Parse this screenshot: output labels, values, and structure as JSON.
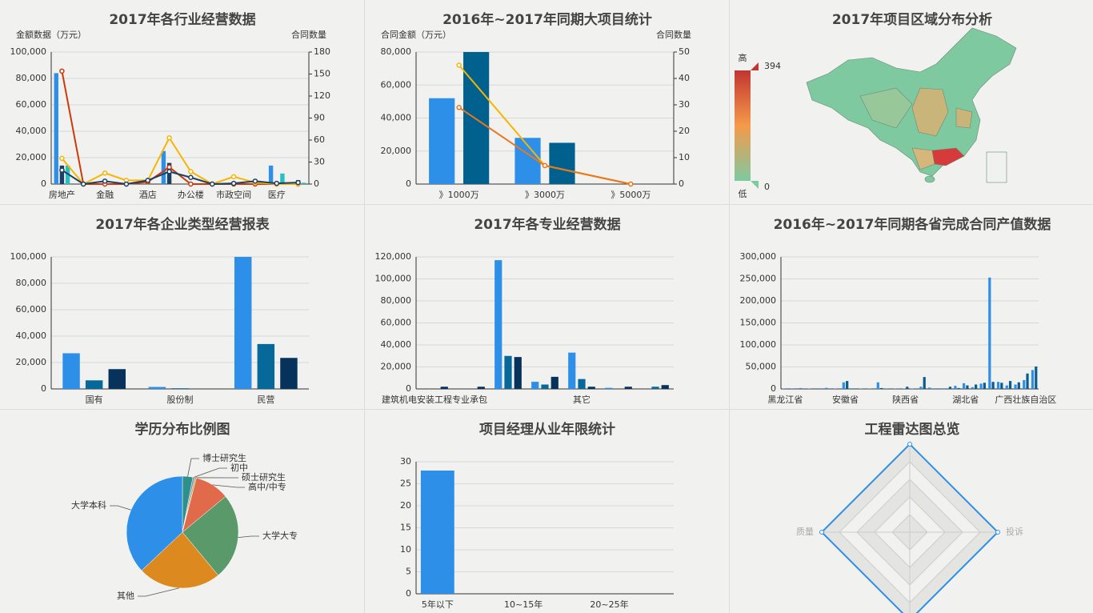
{
  "chart_data": [
    {
      "type": "bar",
      "title": "2017年各行业经营数据",
      "ylabel": "金额数据（万元）",
      "y2label": "合同数量",
      "categories": [
        "房地产",
        null,
        "金融",
        null,
        "酒店",
        null,
        "办公楼",
        null,
        "市政空间",
        null,
        "医疗",
        null
      ],
      "series": [
        {
          "color": "#2e8fe8",
          "values": [
            84000,
            0,
            0,
            0,
            0,
            25000,
            0,
            0,
            0,
            0,
            14000,
            0
          ]
        },
        {
          "color": "#1b3f66",
          "values": [
            14000,
            0,
            0,
            0,
            0,
            16000,
            0,
            0,
            0,
            0,
            0,
            3000
          ]
        },
        {
          "color": "#26c0c0",
          "values": [
            14000,
            0,
            0,
            0,
            0,
            0,
            0,
            0,
            0,
            0,
            8000,
            1000
          ]
        },
        {
          "type": "line",
          "axis": "y2",
          "color": "#cc3a0a",
          "values": [
            154,
            0,
            0,
            0,
            3,
            23,
            0,
            0,
            0,
            0,
            0,
            0
          ]
        },
        {
          "type": "line",
          "axis": "y2",
          "color": "#f7b500",
          "values": [
            35,
            0,
            15,
            5,
            5,
            63,
            17,
            0,
            10,
            2,
            0,
            0
          ]
        },
        {
          "type": "line",
          "axis": "y2",
          "color": "#1b3f66",
          "values": [
            19,
            0,
            4,
            0,
            5,
            17,
            9,
            0,
            1,
            4,
            1,
            2
          ]
        }
      ],
      "ylim": [
        0,
        100000
      ],
      "yticks": [
        0,
        {
          "value": 20000,
          "label": "20,000"
        },
        {
          "value": 40000,
          "label": "40,000"
        },
        {
          "value": 60000,
          "label": "60,000"
        },
        {
          "value": 80000,
          "label": "80,000"
        },
        {
          "value": 100000,
          "label": "100,000"
        }
      ],
      "y2lim": [
        0,
        180
      ],
      "y2ticks": [
        0,
        30,
        60,
        90,
        120,
        150,
        180
      ],
      "grid": true
    },
    {
      "type": "bar",
      "title": "2016年~2017年同期大项目统计",
      "ylabel": "合同金额（万元）",
      "y2label": "合同数量",
      "categories": [
        "》1000万",
        "》3000万",
        "》5000万"
      ],
      "series": [
        {
          "color": "#2e8fe8",
          "values": [
            52000,
            28000,
            0
          ]
        },
        {
          "color": "#00618f",
          "values": [
            80000,
            25000,
            0
          ]
        },
        {
          "type": "line",
          "axis": "y2",
          "color": "#f7b500",
          "values": [
            45,
            7,
            0
          ]
        },
        {
          "type": "line",
          "axis": "y2",
          "color": "#e8771e",
          "values": [
            29,
            7,
            0
          ]
        }
      ],
      "ylim": [
        0,
        80000
      ],
      "yticks": [
        0,
        {
          "value": 20000,
          "label": "20,000"
        },
        {
          "value": 40000,
          "label": "40,000"
        },
        {
          "value": 60000,
          "label": "60,000"
        },
        {
          "value": 80000,
          "label": "80,000"
        }
      ],
      "y2lim": [
        0,
        50
      ],
      "y2ticks": [
        0,
        10,
        20,
        30,
        40,
        50
      ],
      "grid": true
    },
    {
      "type": "map",
      "title": "2017年项目区域分布分析",
      "visual_map": {
        "max": 394,
        "min": 0,
        "text": [
          "高",
          "低"
        ],
        "colors": [
          "#c23531",
          "#f59a4a",
          "#7fc9a0"
        ]
      }
    },
    {
      "type": "bar",
      "title": "2017年各企业类型经营报表",
      "categories": [
        "国有",
        "股份制",
        "民营"
      ],
      "series": [
        {
          "color": "#2e8fe8",
          "values": [
            27000,
            1500,
            100000
          ]
        },
        {
          "color": "#07689a",
          "values": [
            6500,
            500,
            34000
          ]
        },
        {
          "color": "#06325c",
          "values": [
            15000,
            0,
            23500
          ]
        }
      ],
      "ylim": [
        0,
        100000
      ],
      "yticks": [
        0,
        {
          "value": 20000,
          "label": "20,000"
        },
        {
          "value": 40000,
          "label": "40,000"
        },
        {
          "value": 60000,
          "label": "60,000"
        },
        {
          "value": 80000,
          "label": "80,000"
        },
        {
          "value": 100000,
          "label": "100,000"
        }
      ],
      "grid": true
    },
    {
      "type": "bar",
      "title": "2017年各专业经营数据",
      "categories": [
        "建筑机电安装工程专业承包",
        null,
        null,
        null,
        "其它",
        null,
        null
      ],
      "series": [
        {
          "color": "#2e8fe8",
          "values": [
            0,
            0,
            117000,
            6500,
            33000,
            1000,
            0
          ]
        },
        {
          "color": "#07689a",
          "values": [
            0,
            0,
            30000,
            4000,
            9000,
            0,
            2000
          ]
        },
        {
          "color": "#06325c",
          "values": [
            2000,
            2000,
            29000,
            11000,
            2000,
            2000,
            3500
          ]
        }
      ],
      "ylim": [
        0,
        120000
      ],
      "yticks": [
        0,
        {
          "value": 20000,
          "label": "20,000"
        },
        {
          "value": 40000,
          "label": "40,000"
        },
        {
          "value": 60000,
          "label": "60,000"
        },
        {
          "value": 80000,
          "label": "80,000"
        },
        {
          "value": 100000,
          "label": "100,000"
        },
        {
          "value": 120000,
          "label": "120,000"
        }
      ],
      "grid": true
    },
    {
      "type": "bar",
      "title": "2016年~2017年同期各省完成合同产值数据",
      "categories": [
        "黑龙江省",
        null,
        null,
        null,
        null,
        null,
        null,
        "安徽省",
        null,
        null,
        null,
        null,
        null,
        null,
        "陕西省",
        null,
        null,
        null,
        null,
        null,
        null,
        "湖北省",
        null,
        null,
        null,
        null,
        null,
        null,
        "广西壮族自治区",
        null
      ],
      "series": [
        {
          "color": "#2e8fe8",
          "values": [
            1000,
            500,
            2000,
            800,
            1500,
            2500,
            1000,
            15000,
            1500,
            800,
            1000,
            15000,
            500,
            1000,
            1000,
            800,
            5000,
            3000,
            1500,
            1500,
            7000,
            13000,
            4000,
            12000,
            253000,
            16000,
            8000,
            10000,
            20000,
            43000
          ]
        },
        {
          "color": "#0b5b8f",
          "values": [
            300,
            300,
            500,
            300,
            600,
            1000,
            500,
            18000,
            1000,
            300,
            500,
            2000,
            200,
            500,
            5000,
            300,
            27000,
            800,
            500,
            5000,
            2000,
            8000,
            10000,
            14000,
            16000,
            14000,
            18000,
            15000,
            35000,
            51000
          ]
        }
      ],
      "ylim": [
        0,
        300000
      ],
      "yticks": [
        0,
        {
          "value": 50000,
          "label": "50,000"
        },
        {
          "value": 100000,
          "label": "100,000"
        },
        {
          "value": 150000,
          "label": "150,000"
        },
        {
          "value": 200000,
          "label": "200,000"
        },
        {
          "value": 250000,
          "label": "250,000"
        },
        {
          "value": 300000,
          "label": "300,000"
        }
      ],
      "grid": true
    },
    {
      "type": "pie",
      "title": "学历分布比例图",
      "categories": [
        "博士研究生",
        "初中",
        "硕士研究生",
        "高中/中专",
        "大学大专",
        "其他",
        "大学本科"
      ],
      "values": [
        3,
        0.5,
        0.5,
        10,
        25,
        24,
        37
      ],
      "colors": [
        "#2f8f8a",
        "#6a8fb0",
        "#c9a64a",
        "#e06a4a",
        "#5a9a6a",
        "#dc8a20",
        "#2e8fe8"
      ]
    },
    {
      "type": "bar",
      "title": "项目经理从业年限统计",
      "categories": [
        "5年以下",
        null,
        "10~15年",
        null,
        "20~25年",
        null
      ],
      "series": [
        {
          "color": "#2e8fe8",
          "values": [
            28,
            0,
            0,
            0,
            0,
            0
          ]
        }
      ],
      "ylim": [
        0,
        30
      ],
      "yticks": [
        0,
        5,
        10,
        15,
        20,
        25,
        30
      ],
      "grid": true
    },
    {
      "type": "radar",
      "title": "工程雷达图总览",
      "indicators": [
        {
          "name": null,
          "max": 100
        },
        {
          "name": "投诉",
          "max": 100
        },
        {
          "name": null,
          "max": 100
        },
        {
          "name": "质量",
          "max": 100
        }
      ],
      "values": [
        100,
        100,
        100,
        100
      ],
      "color": "#2e8fe8"
    }
  ]
}
